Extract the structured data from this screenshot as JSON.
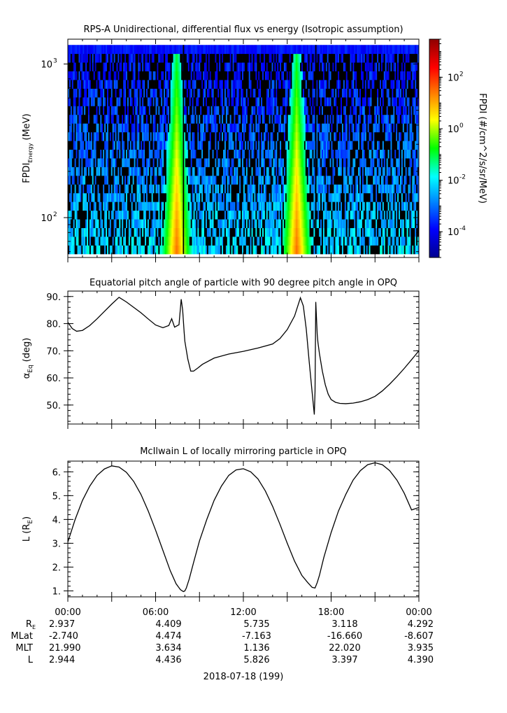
{
  "chart_data": [
    {
      "type": "heatmap",
      "title": "RPS-A Unidirectional, differential flux vs energy (Isotropic assumption)",
      "ylabel": "FPDI",
      "ylabel_sub": "Energy",
      "ylabel_unit": "(MeV)",
      "yscale": "log",
      "ylim": [
        55,
        1450
      ],
      "yticks": [
        {
          "value": 100,
          "base": "10",
          "exp": "2"
        },
        {
          "value": 1000,
          "base": "10",
          "exp": "3"
        }
      ],
      "energy_range": [
        58,
        1330
      ],
      "bright_bands_hours": [
        7.0,
        15.2
      ],
      "gap_lines_hours": [
        7.9,
        16.95
      ],
      "colorbar": {
        "label": "FPDI (#/cm^2/s/sr/MeV)",
        "scale": "log",
        "range": [
          1e-05,
          3000
        ],
        "ticks": [
          {
            "value": 0.0001,
            "base": "10",
            "exp": "-4"
          },
          {
            "value": 0.01,
            "base": "10",
            "exp": "-2"
          },
          {
            "value": 1,
            "base": "10",
            "exp": "0"
          },
          {
            "value": 100,
            "base": "10",
            "exp": "2"
          }
        ]
      }
    },
    {
      "type": "line",
      "title": "Equatorial pitch angle of particle with 90 degree pitch angle in OPQ",
      "ylabel": "α",
      "ylabel_sub": "Eq",
      "ylabel_unit": "(deg)",
      "ylim": [
        43,
        92
      ],
      "yticks": [
        "50.",
        "60.",
        "70.",
        "80.",
        "90."
      ],
      "x_hours": [
        0,
        0.3,
        0.6,
        1,
        1.5,
        2,
        2.5,
        3,
        3.5,
        4,
        4.5,
        5,
        5.5,
        6,
        6.5,
        6.9,
        7.1,
        7.3,
        7.6,
        7.75,
        7.85,
        7.95,
        8.0,
        8.2,
        8.4,
        8.6,
        8.9,
        9.2,
        10,
        11,
        12,
        13,
        14,
        14.5,
        15,
        15.5,
        15.9,
        16.1,
        16.3,
        16.5,
        16.75,
        16.85,
        16.9,
        16.95,
        17.05,
        17.1,
        17.2,
        17.4,
        17.6,
        17.8,
        18,
        18.3,
        18.6,
        19,
        19.5,
        20,
        20.5,
        21,
        21.5,
        22,
        22.5,
        23,
        23.5,
        24
      ],
      "y_deg": [
        80.5,
        78.2,
        77.2,
        77.5,
        79.3,
        81.8,
        84.5,
        87.2,
        89.7,
        88.0,
        86.0,
        84.0,
        81.7,
        79.5,
        78.5,
        79.3,
        81.8,
        78.7,
        79.6,
        89.0,
        85.0,
        77.0,
        73.5,
        67.0,
        62.5,
        62.5,
        63.7,
        65.0,
        67.3,
        68.8,
        69.8,
        71.0,
        72.5,
        74.5,
        77.8,
        82.8,
        89.5,
        86.5,
        78.0,
        66.0,
        52.0,
        46.5,
        55.0,
        88.0,
        76.0,
        73.0,
        69.0,
        62.5,
        57.5,
        54.0,
        52.0,
        51.0,
        50.6,
        50.5,
        50.7,
        51.2,
        52.0,
        53.2,
        55.2,
        57.7,
        60.5,
        63.5,
        66.7,
        70.0
      ]
    },
    {
      "type": "line",
      "title": "McIlwain L of locally mirroring particle in OPQ",
      "ylabel": "L (R",
      "ylabel_sub": "E",
      "ylabel_unit": ")",
      "ylim": [
        0.75,
        6.45
      ],
      "yticks": [
        "1.",
        "2.",
        "3.",
        "4.",
        "5.",
        "6."
      ],
      "x_hours": [
        0,
        0.5,
        1,
        1.5,
        2,
        2.5,
        3,
        3.5,
        4,
        4.5,
        5,
        5.5,
        6,
        6.5,
        7,
        7.4,
        7.7,
        7.9,
        8.0,
        8.1,
        8.3,
        8.6,
        9,
        9.5,
        10,
        10.5,
        11,
        11.5,
        12,
        12.5,
        13,
        13.5,
        14,
        14.5,
        15,
        15.5,
        16,
        16.4,
        16.7,
        16.9,
        17.05,
        17.2,
        17.5,
        18,
        18.5,
        19,
        19.5,
        20,
        20.5,
        21,
        21.5,
        22,
        22.5,
        23,
        23.5,
        24
      ],
      "y_L": [
        3.05,
        4.0,
        4.8,
        5.4,
        5.85,
        6.12,
        6.25,
        6.2,
        5.98,
        5.6,
        5.05,
        4.35,
        3.55,
        2.7,
        1.85,
        1.3,
        1.05,
        0.97,
        1.0,
        1.12,
        1.5,
        2.2,
        3.1,
        4.0,
        4.8,
        5.4,
        5.85,
        6.08,
        6.13,
        6.0,
        5.7,
        5.2,
        4.55,
        3.8,
        3.0,
        2.25,
        1.65,
        1.35,
        1.15,
        1.12,
        1.35,
        1.65,
        2.4,
        3.45,
        4.35,
        5.05,
        5.65,
        6.05,
        6.3,
        6.38,
        6.3,
        6.05,
        5.65,
        5.1,
        4.4,
        4.5
      ]
    }
  ],
  "x_axis": {
    "range_hours": [
      0,
      24
    ],
    "tick_labels": [
      "00:00",
      "06:00",
      "12:00",
      "18:00",
      "00:00"
    ],
    "date_label": "2018-07-18 (199)"
  },
  "ephemeris": {
    "rows": [
      {
        "label": "R",
        "sub": "E",
        "values": [
          "2.937",
          "4.409",
          "5.735",
          "3.118",
          "4.292"
        ]
      },
      {
        "label": "MLat",
        "sub": "",
        "values": [
          "-2.740",
          "4.474",
          "-7.163",
          "-16.660",
          "-8.607"
        ]
      },
      {
        "label": "MLT",
        "sub": "",
        "values": [
          "21.990",
          "3.634",
          "1.136",
          "22.020",
          "3.935"
        ]
      },
      {
        "label": "L",
        "sub": "",
        "values": [
          "2.944",
          "4.436",
          "5.826",
          "3.397",
          "4.390"
        ]
      }
    ]
  }
}
